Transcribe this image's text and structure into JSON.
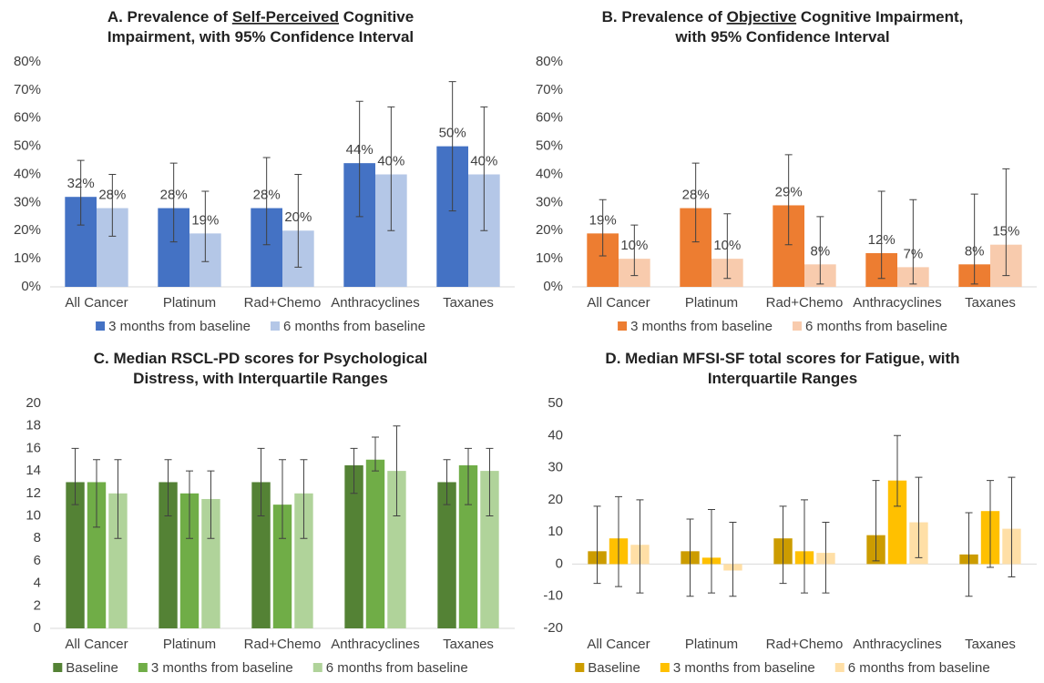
{
  "chart_data": [
    {
      "type": "bar",
      "title": [
        [
          "A. Prevalence of ",
          "Self-Perceived",
          " Cognitive"
        ],
        [
          "Impairment, with 95% Confidence Interval"
        ]
      ],
      "title_underline": [
        0,
        1
      ],
      "categories": [
        "All Cancer",
        "Platinum",
        "Rad+Chemo",
        "Anthracyclines",
        "Taxanes"
      ],
      "series": [
        {
          "name": "3 months from baseline",
          "color": "#4472c4",
          "values": [
            32,
            28,
            28,
            44,
            50
          ],
          "value_labels": [
            "32%",
            "28%",
            "28%",
            "44%",
            "50%"
          ],
          "error_low": [
            22,
            16,
            15,
            25,
            27
          ],
          "error_high": [
            45,
            44,
            46,
            66,
            73
          ]
        },
        {
          "name": "6 months from baseline",
          "color": "#b4c7e7",
          "values": [
            28,
            19,
            20,
            40,
            40
          ],
          "value_labels": [
            "28%",
            "19%",
            "20%",
            "40%",
            "40%"
          ],
          "error_low": [
            18,
            9,
            7,
            20,
            20
          ],
          "error_high": [
            40,
            34,
            40,
            64,
            64
          ]
        }
      ],
      "ylim": [
        0,
        80
      ],
      "yticks": [
        {
          "value": 0,
          "label": "0%"
        },
        {
          "value": 10,
          "label": "10%"
        },
        {
          "value": 20,
          "label": "20%"
        },
        {
          "value": 30,
          "label": "30%"
        },
        {
          "value": 40,
          "label": "40%"
        },
        {
          "value": 50,
          "label": "50%"
        },
        {
          "value": 60,
          "label": "60%"
        },
        {
          "value": 70,
          "label": "70%"
        },
        {
          "value": 80,
          "label": "80%"
        }
      ],
      "legend": "bottom"
    },
    {
      "type": "bar",
      "title": [
        [
          "B. Prevalence of ",
          "Objective",
          " Cognitive Impairment,"
        ],
        [
          "with 95% Confidence Interval"
        ]
      ],
      "title_underline": [
        0,
        1
      ],
      "categories": [
        "All Cancer",
        "Platinum",
        "Rad+Chemo",
        "Anthracyclines",
        "Taxanes"
      ],
      "series": [
        {
          "name": "3 months from baseline",
          "color": "#ed7d31",
          "values": [
            19,
            28,
            29,
            12,
            8
          ],
          "value_labels": [
            "19%",
            "28%",
            "29%",
            "12%",
            "8%"
          ],
          "error_low": [
            11,
            16,
            15,
            3,
            1
          ],
          "error_high": [
            31,
            44,
            47,
            34,
            33
          ]
        },
        {
          "name": "6 months from baseline",
          "color": "#f8cbad",
          "values": [
            10,
            10,
            8,
            7,
            15
          ],
          "value_labels": [
            "10%",
            "10%",
            "8%",
            "7%",
            "15%"
          ],
          "error_low": [
            4,
            3,
            1,
            1,
            4
          ],
          "error_high": [
            22,
            26,
            25,
            31,
            42
          ]
        }
      ],
      "ylim": [
        0,
        80
      ],
      "yticks": [
        {
          "value": 0,
          "label": "0%"
        },
        {
          "value": 10,
          "label": "10%"
        },
        {
          "value": 20,
          "label": "20%"
        },
        {
          "value": 30,
          "label": "30%"
        },
        {
          "value": 40,
          "label": "40%"
        },
        {
          "value": 50,
          "label": "50%"
        },
        {
          "value": 60,
          "label": "60%"
        },
        {
          "value": 70,
          "label": "70%"
        },
        {
          "value": 80,
          "label": "80%"
        }
      ],
      "legend": "bottom"
    },
    {
      "type": "bar",
      "title": [
        [
          "C. Median RSCL-PD scores for Psychological"
        ],
        [
          "Distress, with Interquartile Ranges"
        ]
      ],
      "categories": [
        "All Cancer",
        "Platinum",
        "Rad+Chemo",
        "Anthracyclines",
        "Taxanes"
      ],
      "series": [
        {
          "name": "Baseline",
          "color": "#548235",
          "values": [
            13,
            13,
            13,
            14.5,
            13
          ],
          "error_low": [
            11,
            10,
            10,
            12,
            11
          ],
          "error_high": [
            16,
            15,
            16,
            16,
            15
          ]
        },
        {
          "name": "3 months from baseline",
          "color": "#70ad47",
          "values": [
            13,
            12,
            11,
            15,
            14.5
          ],
          "error_low": [
            9,
            8,
            8,
            14,
            11
          ],
          "error_high": [
            15,
            14,
            15,
            17,
            16
          ]
        },
        {
          "name": "6 months from baseline",
          "color": "#b0d39a",
          "values": [
            12,
            11.5,
            12,
            14,
            14
          ],
          "error_low": [
            8,
            8,
            8,
            10,
            10
          ],
          "error_high": [
            15,
            14,
            15,
            18,
            16
          ]
        }
      ],
      "ylim": [
        0,
        20
      ],
      "yticks": [
        0,
        2,
        4,
        6,
        8,
        10,
        12,
        14,
        16,
        18,
        20
      ],
      "legend": "bottom"
    },
    {
      "type": "bar",
      "title": [
        [
          "D. Median MFSI-SF total scores for Fatigue, with"
        ],
        [
          "Interquartile Ranges"
        ]
      ],
      "categories": [
        "All Cancer",
        "Platinum",
        "Rad+Chemo",
        "Anthracyclines",
        "Taxanes"
      ],
      "series": [
        {
          "name": "Baseline",
          "color": "#cc9c00",
          "values": [
            4,
            4,
            8,
            9,
            3
          ],
          "error_low": [
            -6,
            -10,
            -6,
            1,
            -10
          ],
          "error_high": [
            18,
            14,
            18,
            26,
            16
          ]
        },
        {
          "name": "3 months from baseline",
          "color": "#ffc000",
          "values": [
            8,
            2,
            4,
            26,
            16.5
          ],
          "error_low": [
            -7,
            -9,
            -9,
            18,
            -1
          ],
          "error_high": [
            21,
            17,
            20,
            40,
            26
          ]
        },
        {
          "name": "6 months from baseline",
          "color": "#ffdfa6",
          "values": [
            6,
            -2,
            3.5,
            13,
            11
          ],
          "error_low": [
            -9,
            -10,
            -9,
            2,
            -4
          ],
          "error_high": [
            20,
            13,
            13,
            27,
            27
          ]
        }
      ],
      "ylim": [
        -20,
        50
      ],
      "yticks": [
        -20,
        -10,
        0,
        10,
        20,
        30,
        40,
        50
      ],
      "legend": "bottom"
    }
  ]
}
